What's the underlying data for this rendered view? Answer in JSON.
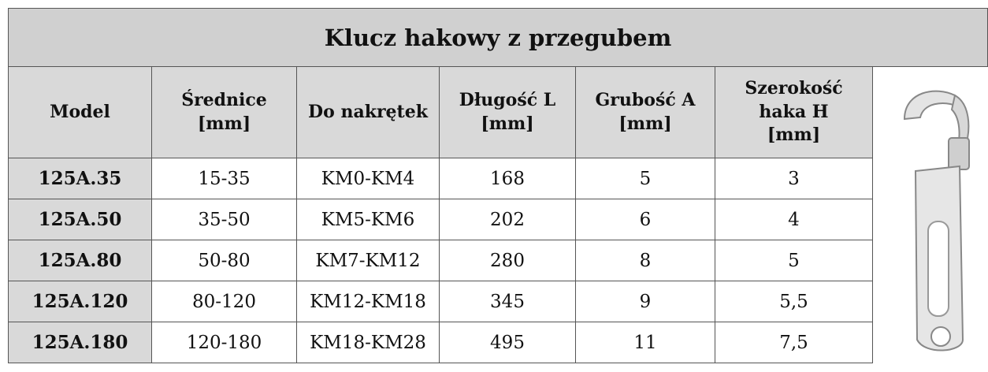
{
  "table": {
    "title": "Klucz hakowy z przegubem",
    "headers": [
      "Model",
      "Średnice\n[mm]",
      "Do nakrętek",
      "Długość L\n[mm]",
      "Grubość A\n[mm]",
      "Szerokość\nhaka H\n[mm]"
    ],
    "rows": [
      [
        "125A.35",
        "15-35",
        "KM0-KM4",
        "168",
        "5",
        "3"
      ],
      [
        "125A.50",
        "35-50",
        "KM5-KM6",
        "202",
        "6",
        "4"
      ],
      [
        "125A.80",
        "50-80",
        "KM7-KM12",
        "280",
        "8",
        "5"
      ],
      [
        "125A.120",
        "80-120",
        "KM12-KM18",
        "345",
        "9",
        "5,5"
      ],
      [
        "125A.180",
        "120-180",
        "KM18-KM28",
        "495",
        "11",
        "7,5"
      ]
    ]
  }
}
